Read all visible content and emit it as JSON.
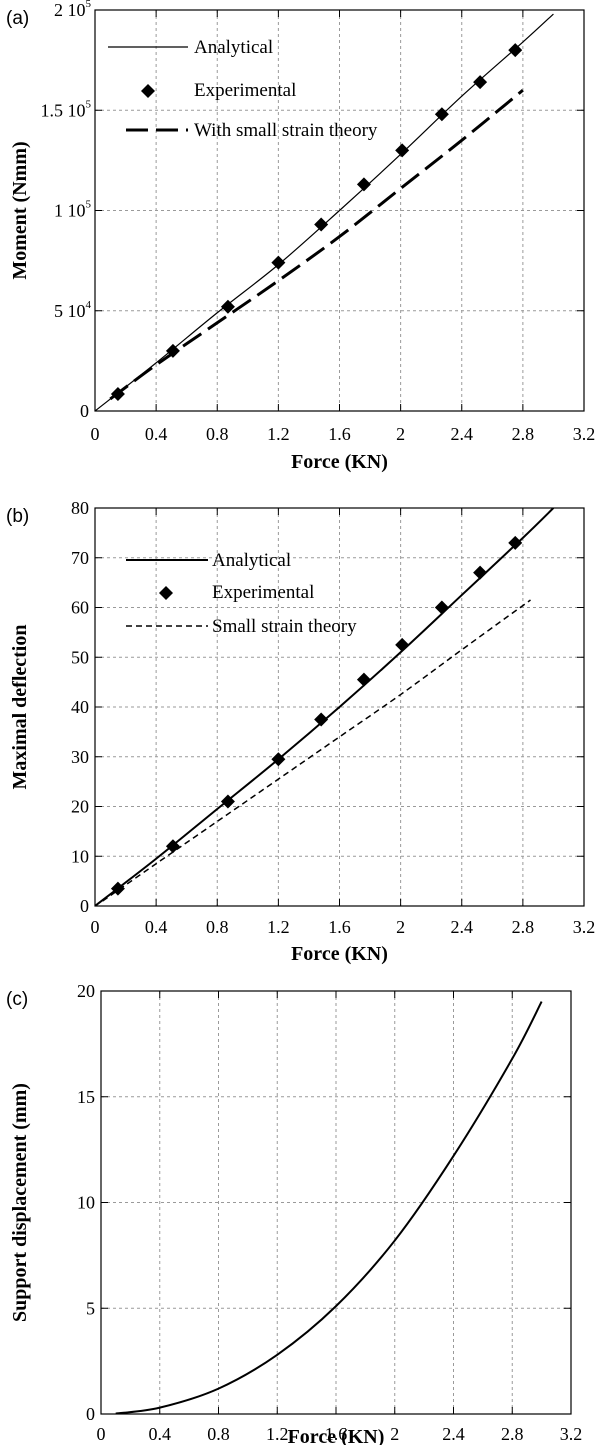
{
  "chart_data": [
    {
      "panel": "(a)",
      "type": "line",
      "xlabel": "Force (KN)",
      "ylabel": "Moment (Nmm)",
      "xlim": [
        0,
        3.2
      ],
      "ylim": [
        0,
        200000
      ],
      "xticks": [
        "0",
        "0.4",
        "0.8",
        "1.2",
        "1.6",
        "2",
        "2.4",
        "2.8",
        "3.2"
      ],
      "yticks": [
        {
          "value": 0,
          "mant": "0",
          "exp": ""
        },
        {
          "value": 50000,
          "mant": "5 10",
          "exp": "4"
        },
        {
          "value": 100000,
          "mant": "1 10",
          "exp": "5"
        },
        {
          "value": 150000,
          "mant": "1.5 10",
          "exp": "5"
        },
        {
          "value": 200000,
          "mant": "2 10",
          "exp": "5"
        }
      ],
      "grid": true,
      "legend_position": "top-left",
      "series": [
        {
          "name": "Analytical",
          "style": "solid-thin",
          "x": [
            0,
            0.4,
            0.8,
            1.2,
            1.6,
            2.0,
            2.4,
            2.8,
            3.0
          ],
          "y": [
            0,
            24000,
            49000,
            73000,
            100000,
            128000,
            157000,
            184000,
            198000
          ]
        },
        {
          "name": "Experimental",
          "style": "diamond",
          "x": [
            0.15,
            0.51,
            0.87,
            1.2,
            1.48,
            1.76,
            2.01,
            2.27,
            2.52,
            2.75
          ],
          "y": [
            8500,
            30000,
            52000,
            74000,
            93000,
            113000,
            130000,
            148000,
            164000,
            180000
          ]
        },
        {
          "name": "With small strain theory",
          "style": "long-dash",
          "x": [
            0.1,
            0.4,
            0.8,
            1.2,
            1.6,
            2.0,
            2.4,
            2.8
          ],
          "y": [
            6000,
            23000,
            44000,
            65000,
            87000,
            111000,
            135000,
            160000
          ]
        }
      ]
    },
    {
      "panel": "(b)",
      "type": "line",
      "xlabel": "Force (KN)",
      "ylabel": "Maximal deflection",
      "xlim": [
        0,
        3.2
      ],
      "ylim": [
        0,
        80
      ],
      "xticks": [
        "0",
        "0.4",
        "0.8",
        "1.2",
        "1.6",
        "2",
        "2.4",
        "2.8",
        "3.2"
      ],
      "yticks": [
        {
          "value": 0,
          "mant": "0",
          "exp": ""
        },
        {
          "value": 10,
          "mant": "10",
          "exp": ""
        },
        {
          "value": 20,
          "mant": "20",
          "exp": ""
        },
        {
          "value": 30,
          "mant": "30",
          "exp": ""
        },
        {
          "value": 40,
          "mant": "40",
          "exp": ""
        },
        {
          "value": 50,
          "mant": "50",
          "exp": ""
        },
        {
          "value": 60,
          "mant": "60",
          "exp": ""
        },
        {
          "value": 70,
          "mant": "70",
          "exp": ""
        },
        {
          "value": 80,
          "mant": "80",
          "exp": ""
        }
      ],
      "grid": true,
      "legend_position": "top-left",
      "series": [
        {
          "name": "Analytical",
          "style": "solid-thick",
          "x": [
            0,
            0.4,
            0.8,
            1.2,
            1.6,
            2.0,
            2.4,
            2.8,
            3.0
          ],
          "y": [
            0,
            9.5,
            19.5,
            29.5,
            40,
            51,
            62.5,
            74,
            80
          ]
        },
        {
          "name": "Experimental",
          "style": "diamond",
          "x": [
            0.15,
            0.51,
            0.87,
            1.2,
            1.48,
            1.76,
            2.01,
            2.27,
            2.52,
            2.75
          ],
          "y": [
            3.5,
            12,
            21,
            29.5,
            37.5,
            45.5,
            52.5,
            60,
            67,
            73
          ]
        },
        {
          "name": "Small strain theory",
          "style": "short-dash",
          "x": [
            0.05,
            0.4,
            0.8,
            1.2,
            1.6,
            2.0,
            2.4,
            2.85
          ],
          "y": [
            1,
            8.5,
            17,
            25.5,
            34,
            42.5,
            51.5,
            61.5
          ]
        }
      ]
    },
    {
      "panel": "(c)",
      "type": "line",
      "xlabel": "Force (KN)",
      "ylabel": "Support displacement (mm)",
      "xlim": [
        0,
        3.2
      ],
      "ylim": [
        0,
        20
      ],
      "xticks": [
        "0",
        "0.4",
        "0.8",
        "1.2",
        "1.6",
        "2",
        "2.4",
        "2.8",
        "3.2"
      ],
      "yticks": [
        {
          "value": 0,
          "mant": "0",
          "exp": ""
        },
        {
          "value": 5,
          "mant": "5",
          "exp": ""
        },
        {
          "value": 10,
          "mant": "10",
          "exp": ""
        },
        {
          "value": 15,
          "mant": "15",
          "exp": ""
        },
        {
          "value": 20,
          "mant": "20",
          "exp": ""
        }
      ],
      "grid": true,
      "series": [
        {
          "name": "",
          "style": "solid-thick",
          "x": [
            0.1,
            0.4,
            0.8,
            1.2,
            1.6,
            2.0,
            2.4,
            2.8,
            3.0
          ],
          "y": [
            0.02,
            0.3,
            1.2,
            2.8,
            5.1,
            8.2,
            12.2,
            16.8,
            19.5
          ]
        }
      ]
    }
  ]
}
